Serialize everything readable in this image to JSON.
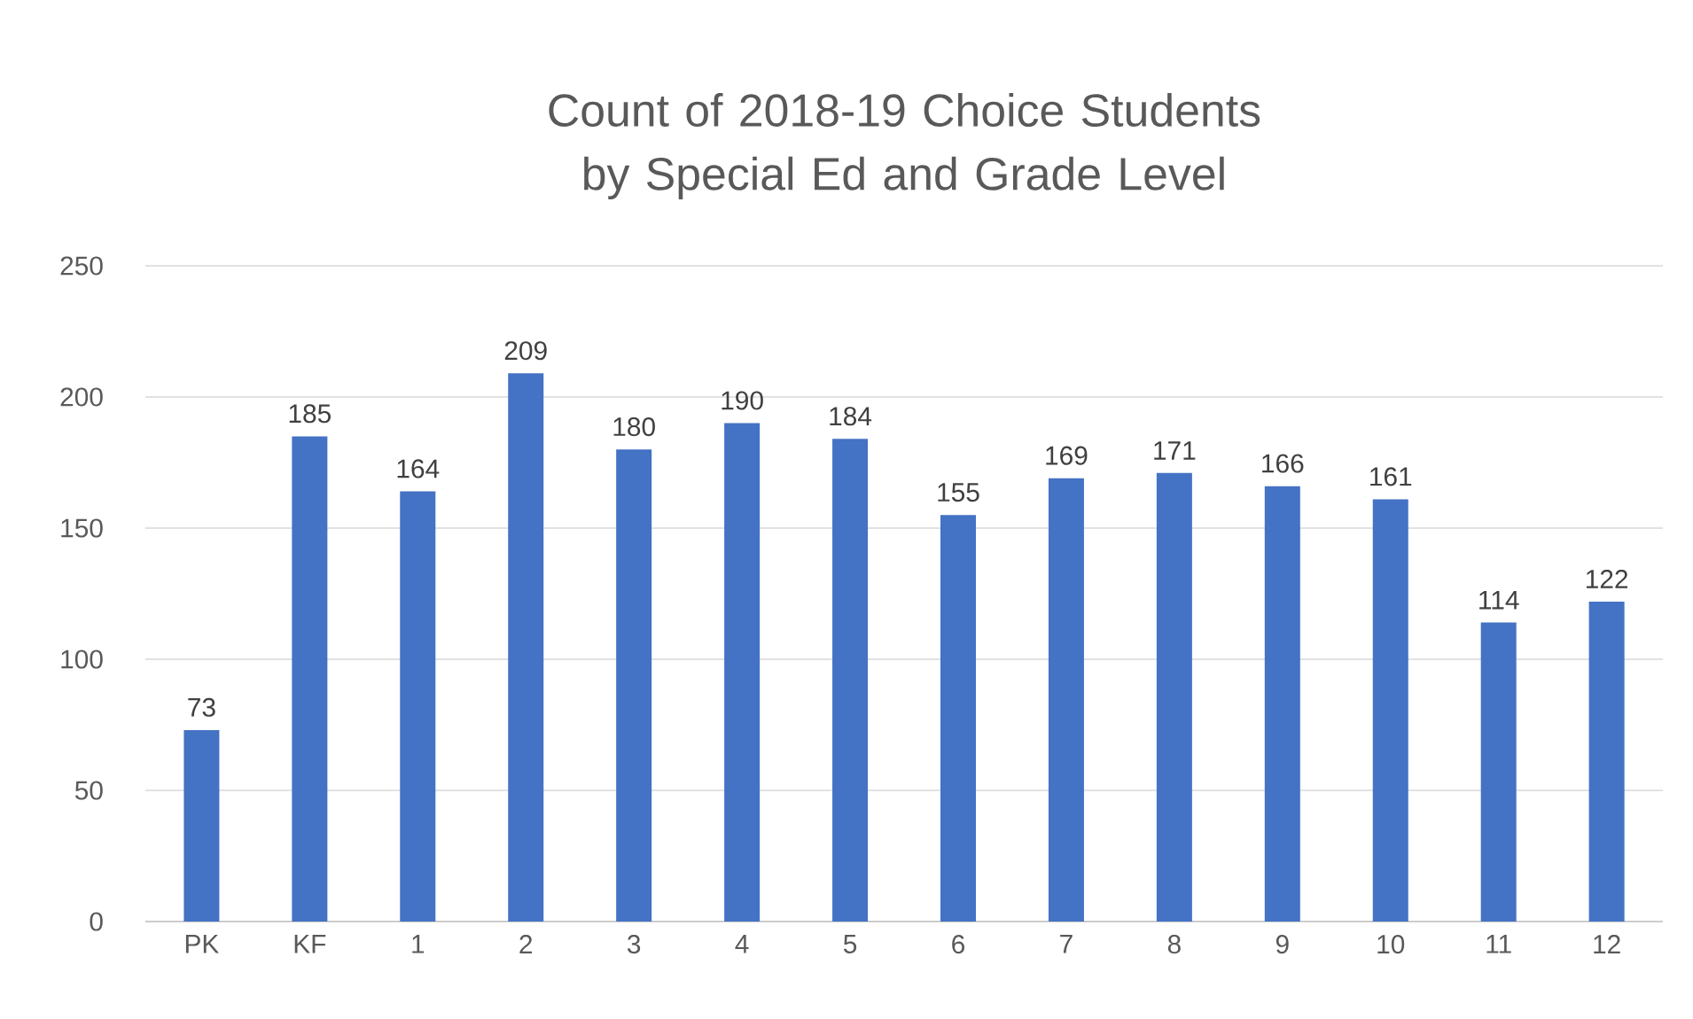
{
  "chart_data": {
    "type": "bar",
    "title": "Count of 2018-19 Choice Students by Special Ed and Grade Level",
    "categories": [
      "PK",
      "KF",
      "1",
      "2",
      "3",
      "4",
      "5",
      "6",
      "7",
      "8",
      "9",
      "10",
      "11",
      "12"
    ],
    "values": [
      73,
      185,
      164,
      209,
      180,
      190,
      184,
      155,
      169,
      171,
      166,
      161,
      114,
      122
    ],
    "color": "#4472c4",
    "ylim": [
      0,
      250
    ],
    "yticks": [
      0,
      50,
      100,
      150,
      200,
      250
    ],
    "grid": "y",
    "data_labels": true
  }
}
